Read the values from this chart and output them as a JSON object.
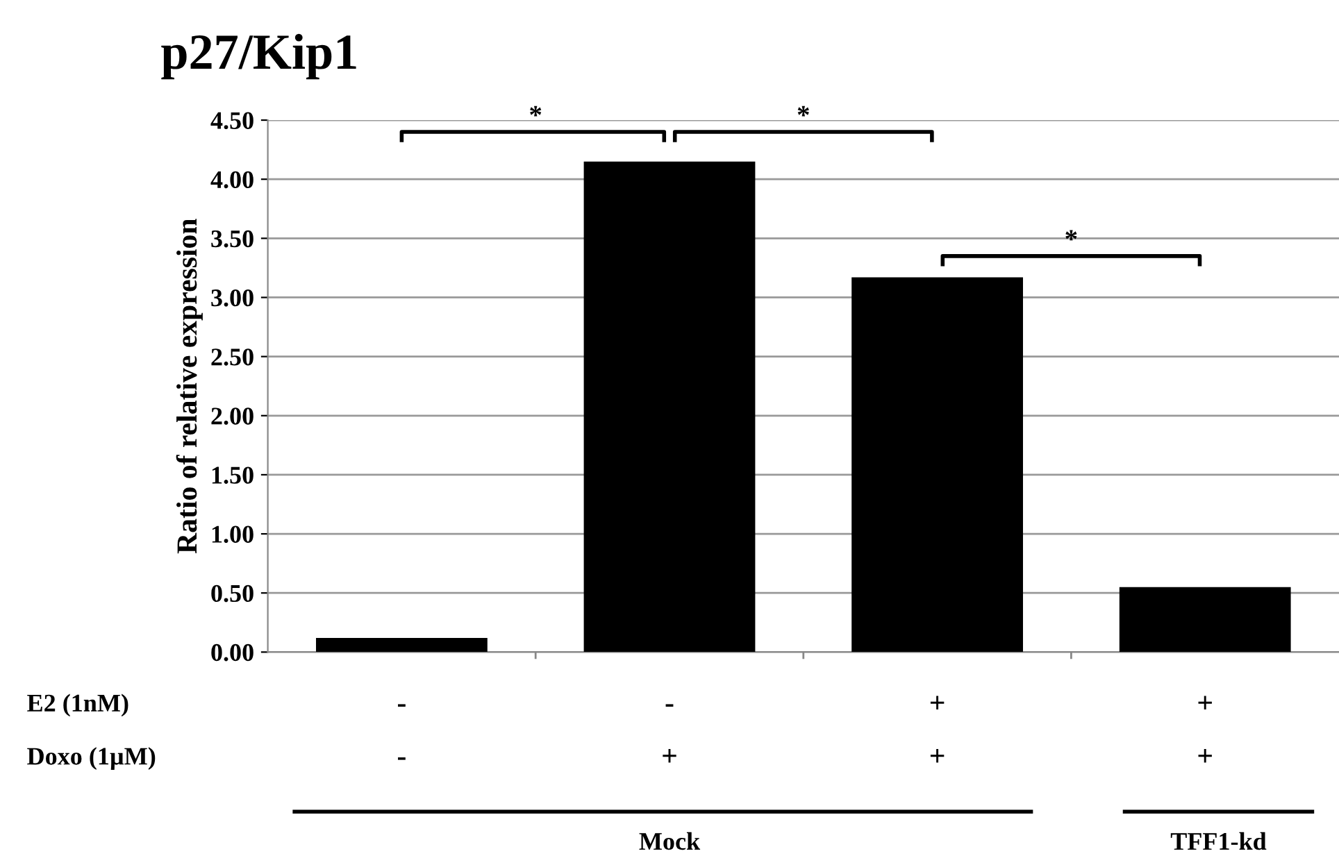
{
  "chart_data": {
    "type": "bar",
    "title": "p27/Kip1",
    "ylabel": "Ratio of relative expression",
    "categories": [
      null,
      null,
      null,
      null
    ],
    "values": [
      0.12,
      4.15,
      3.17,
      0.55
    ],
    "color": "#000000",
    "ylim": [
      0,
      4.5
    ],
    "yticks": [
      {
        "value": 0,
        "label": "0.00"
      },
      {
        "value": 0.5,
        "label": "0.50"
      },
      {
        "value": 1,
        "label": "1.00"
      },
      {
        "value": 1.5,
        "label": "1.50"
      },
      {
        "value": 2,
        "label": "2.00"
      },
      {
        "value": 2.5,
        "label": "2.50"
      },
      {
        "value": 3,
        "label": "3.00"
      },
      {
        "value": 3.5,
        "label": "3.50"
      },
      {
        "value": 4,
        "label": "4.00"
      },
      {
        "value": 4.5,
        "label": "4.50"
      }
    ],
    "grid": "y",
    "annotations": [
      "*",
      "*",
      "*",
      "E2 (1nM)",
      "-",
      "-",
      "+",
      "+",
      "Doxo (1µM)",
      "-",
      "+",
      "+",
      "+",
      "Mock",
      "TFF1-kd"
    ]
  }
}
